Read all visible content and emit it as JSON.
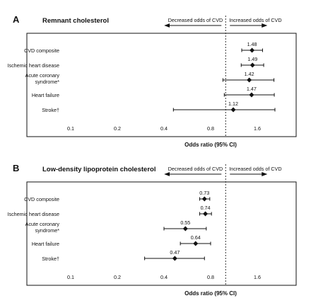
{
  "chart_data": [
    {
      "type": "forest",
      "panel_label": "A",
      "title": "Remnant cholesterol",
      "arrow_left_label": "Decreased odds of CVD",
      "arrow_right_label": "Increased odds of CVD",
      "xlabel": "Odds ratio (95% CI)",
      "xscale": "log",
      "xticks": [
        0.1,
        0.2,
        0.4,
        0.8,
        1.6
      ],
      "xtick_labels": [
        "0.1",
        "0.2",
        "0.4",
        "0.8",
        "1.6"
      ],
      "reference_line": 1.0,
      "rows": [
        {
          "label": "CVD composite",
          "or": 1.48,
          "or_label": "1.48",
          "lo": 1.27,
          "hi": 1.73
        },
        {
          "label": "Ischemic heart disease",
          "or": 1.49,
          "or_label": "1.49",
          "lo": 1.26,
          "hi": 1.76
        },
        {
          "label_lines": [
            "Acute coronary",
            "syndrome*"
          ],
          "or": 1.42,
          "or_label": "1.42",
          "lo": 0.96,
          "hi": 2.05
        },
        {
          "label": "Heart failure",
          "or": 1.47,
          "or_label": "1.47",
          "lo": 0.98,
          "hi": 2.06
        },
        {
          "label": "Stroke†",
          "or": 1.12,
          "or_label": "1.12",
          "lo": 0.46,
          "hi": 2.08
        }
      ]
    },
    {
      "type": "forest",
      "panel_label": "B",
      "title": "Low-density lipoprotein cholesterol",
      "arrow_left_label": "Decreased odds of CVD",
      "arrow_right_label": "Increased odds of CVD",
      "xlabel": "Odds ratio (95% CI)",
      "xscale": "log",
      "xticks": [
        0.1,
        0.2,
        0.4,
        0.8,
        1.6
      ],
      "xtick_labels": [
        "0.1",
        "0.2",
        "0.4",
        "0.8",
        "1.6"
      ],
      "reference_line": 1.0,
      "rows": [
        {
          "label": "CVD composite",
          "or": 0.73,
          "or_label": "0.73",
          "lo": 0.68,
          "hi": 0.79
        },
        {
          "label": "Ischemic heart disease",
          "or": 0.74,
          "or_label": "0.74",
          "lo": 0.68,
          "hi": 0.81
        },
        {
          "label_lines": [
            "Acute coronary",
            "syndrome*"
          ],
          "or": 0.55,
          "or_label": "0.55",
          "lo": 0.4,
          "hi": 0.75
        },
        {
          "label": "Heart failure",
          "or": 0.64,
          "or_label": "0.64",
          "lo": 0.51,
          "hi": 0.8
        },
        {
          "label": "Stroke†",
          "or": 0.47,
          "or_label": "0.47",
          "lo": 0.3,
          "hi": 0.73
        }
      ]
    }
  ]
}
